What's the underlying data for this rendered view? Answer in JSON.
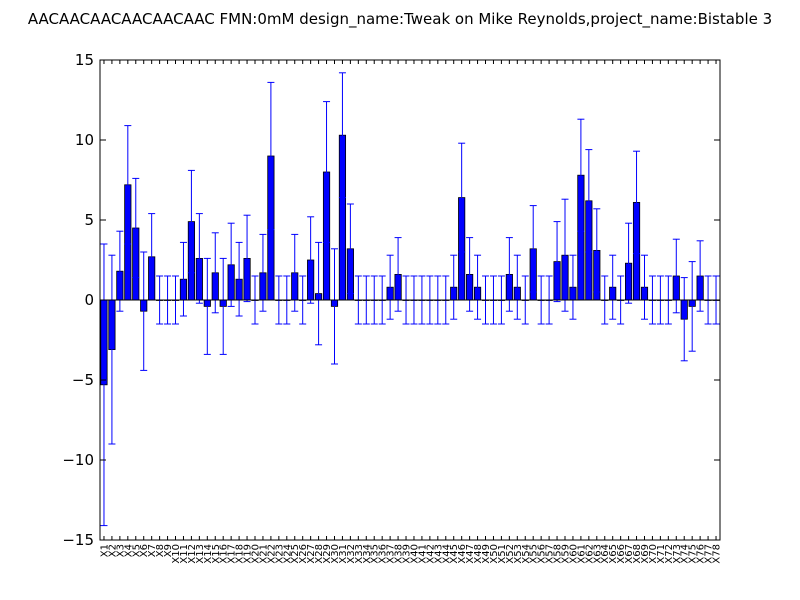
{
  "chart_data": {
    "type": "bar",
    "title": "AACAACAACAACAACAAC  FMN:0mM  design_name:Tweak on Mike Reynolds,project_name:Bistable 3",
    "xlabel": "",
    "ylabel": "",
    "ylim": [
      -15,
      15
    ],
    "yticks": [
      -15,
      -10,
      -5,
      0,
      5,
      10,
      15
    ],
    "ytick_labels": [
      "−15",
      "−10",
      "−5",
      "0",
      "5",
      "10",
      "15"
    ],
    "grid": false,
    "bar_color": "#0000ff",
    "errorbar_color": "#0000ff",
    "categories": [
      "X1",
      "X2",
      "X3",
      "X4",
      "X5",
      "X6",
      "X7",
      "X8",
      "X9",
      "X10",
      "X11",
      "X12",
      "X13",
      "X14",
      "X15",
      "X16",
      "X17",
      "X18",
      "X19",
      "X20",
      "X21",
      "X22",
      "X23",
      "X24",
      "X25",
      "X26",
      "X27",
      "X28",
      "X29",
      "X30",
      "X31",
      "X32",
      "X33",
      "X34",
      "X35",
      "X36",
      "X37",
      "X38",
      "X39",
      "X40",
      "X41",
      "X42",
      "X43",
      "X44",
      "X45",
      "X46",
      "X47",
      "X48",
      "X49",
      "X50",
      "X51",
      "X52",
      "X53",
      "X54",
      "X55",
      "X56",
      "X57",
      "X58",
      "X59",
      "X60",
      "X61",
      "X62",
      "X63",
      "X64",
      "X65",
      "X66",
      "X67",
      "X68",
      "X69",
      "X70",
      "X71",
      "X72",
      "X73",
      "X74",
      "X75",
      "X76",
      "X77",
      "X78"
    ],
    "values": [
      -5.3,
      -3.1,
      1.8,
      7.2,
      4.5,
      -0.7,
      2.7,
      0,
      0,
      0,
      1.3,
      4.9,
      2.6,
      -0.4,
      1.7,
      -0.4,
      2.2,
      1.3,
      2.6,
      0,
      1.7,
      9.0,
      0,
      0,
      1.7,
      0,
      2.5,
      0.4,
      8.0,
      -0.4,
      10.3,
      3.2,
      0,
      0,
      0,
      0,
      0.8,
      1.6,
      0,
      0,
      0,
      0,
      0,
      0,
      0.8,
      6.4,
      1.6,
      0.8,
      0,
      0,
      0,
      1.6,
      0.8,
      0,
      3.2,
      0,
      0,
      2.4,
      2.8,
      0.8,
      7.8,
      6.2,
      3.1,
      0,
      0.8,
      0,
      2.3,
      6.1,
      0.8,
      0,
      0,
      0,
      1.5,
      -1.2,
      -0.4,
      1.5,
      0,
      0
    ],
    "errors": [
      8.8,
      5.9,
      2.5,
      3.7,
      3.1,
      3.7,
      2.7,
      1.5,
      1.5,
      1.5,
      2.3,
      3.2,
      2.8,
      3.0,
      2.5,
      3.0,
      2.6,
      2.3,
      2.7,
      1.5,
      2.4,
      4.6,
      1.5,
      1.5,
      2.4,
      1.5,
      2.7,
      3.2,
      4.4,
      3.6,
      3.9,
      2.8,
      1.5,
      1.5,
      1.5,
      1.5,
      2.0,
      2.3,
      1.5,
      1.5,
      1.5,
      1.5,
      1.5,
      1.5,
      2.0,
      3.4,
      2.3,
      2.0,
      1.5,
      1.5,
      1.5,
      2.3,
      2.0,
      1.5,
      2.7,
      1.5,
      1.5,
      2.5,
      3.5,
      2.0,
      3.5,
      3.2,
      2.6,
      1.5,
      2.0,
      1.5,
      2.5,
      3.2,
      2.0,
      1.5,
      1.5,
      1.5,
      2.3,
      2.6,
      2.8,
      2.2,
      1.5,
      1.5
    ]
  }
}
